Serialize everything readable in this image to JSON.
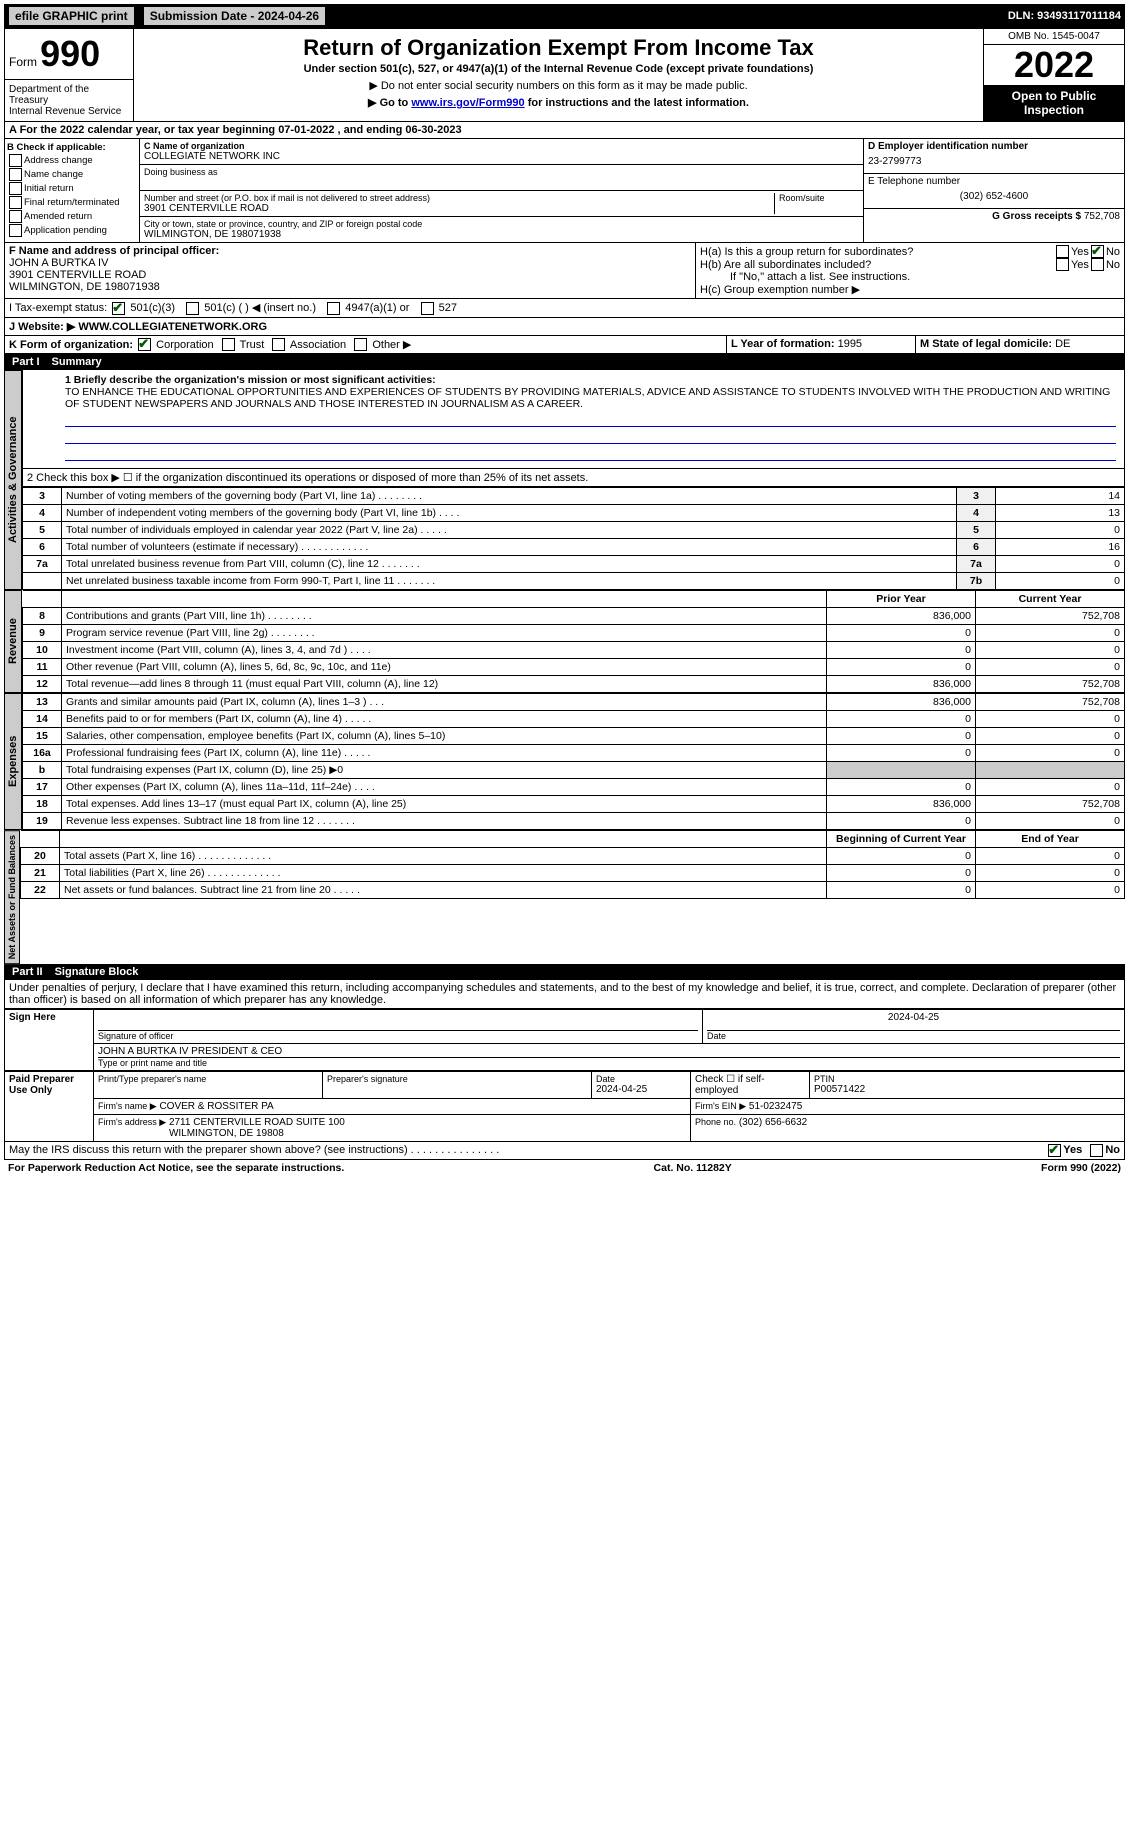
{
  "topbar": {
    "efile": "efile GRAPHIC print",
    "submission_label": "Submission Date - 2024-04-26",
    "dln": "DLN: 93493117011184"
  },
  "header": {
    "form_prefix": "Form",
    "form_number": "990",
    "title": "Return of Organization Exempt From Income Tax",
    "subtitle": "Under section 501(c), 527, or 4947(a)(1) of the Internal Revenue Code (except private foundations)",
    "note1": "▶ Do not enter social security numbers on this form as it may be made public.",
    "note2_pre": "▶ Go to ",
    "note2_link": "www.irs.gov/Form990",
    "note2_post": " for instructions and the latest information.",
    "dept": "Department of the Treasury\nInternal Revenue Service",
    "omb": "OMB No. 1545-0047",
    "year": "2022",
    "open_public": "Open to Public Inspection"
  },
  "rowA": "A For the 2022 calendar year, or tax year beginning 07-01-2022    , and ending 06-30-2023",
  "sectionB": {
    "check_label": "B Check if applicable:",
    "options": [
      "Address change",
      "Name change",
      "Initial return",
      "Final return/terminated",
      "Amended return",
      "Application pending"
    ],
    "c_label": "C Name of organization",
    "org_name": "COLLEGIATE NETWORK INC",
    "dba_label": "Doing business as",
    "addr_label": "Number and street (or P.O. box if mail is not delivered to street address)",
    "room": "Room/suite",
    "addr": "3901 CENTERVILLE ROAD",
    "city_label": "City or town, state or province, country, and ZIP or foreign postal code",
    "city": "WILMINGTON, DE  198071938",
    "d_label": "D Employer identification number",
    "ein": "23-2799773",
    "e_label": "E Telephone number",
    "phone": "(302) 652-4600",
    "g_label": "G Gross receipts $",
    "gross": "752,708"
  },
  "sectionF": {
    "f_label": "F  Name and address of principal officer:",
    "officer": "JOHN A BURTKA IV\n3901 CENTERVILLE ROAD\nWILMINGTON, DE  198071938",
    "ha": "H(a)  Is this a group return for subordinates?",
    "hb": "H(b)  Are all subordinates included?",
    "hb_note": "If \"No,\" attach a list. See instructions.",
    "hc": "H(c)  Group exemption number ▶",
    "yes": "Yes",
    "no": "No"
  },
  "sectionI": {
    "label": "I   Tax-exempt status:",
    "opts": [
      "501(c)(3)",
      "501(c) (  ) ◀ (insert no.)",
      "4947(a)(1) or",
      "527"
    ]
  },
  "sectionJ": {
    "label": "J   Website: ▶",
    "url": "WWW.COLLEGIATENETWORK.ORG"
  },
  "sectionK": {
    "label": "K Form of organization:",
    "opts": [
      "Corporation",
      "Trust",
      "Association",
      "Other ▶"
    ],
    "l_label": "L Year of formation:",
    "l_val": "1995",
    "m_label": "M State of legal domicile:",
    "m_val": "DE"
  },
  "part1": {
    "title": "Part I",
    "name": "Summary",
    "line1_label": "1  Briefly describe the organization's mission or most significant activities:",
    "mission": "TO ENHANCE THE EDUCATIONAL OPPORTUNITIES AND EXPERIENCES OF STUDENTS BY PROVIDING MATERIALS, ADVICE AND ASSISTANCE TO STUDENTS INVOLVED WITH THE PRODUCTION AND WRITING OF STUDENT NEWSPAPERS AND JOURNALS AND THOSE INTERESTED IN JOURNALISM AS A CAREER.",
    "line2": "2   Check this box ▶ ☐  if the organization discontinued its operations or disposed of more than 25% of its net assets.",
    "tabs": {
      "ag": "Activities & Governance",
      "rev": "Revenue",
      "exp": "Expenses",
      "net": "Net Assets or Fund Balances"
    },
    "col_prior": "Prior Year",
    "col_current": "Current Year",
    "col_begin": "Beginning of Current Year",
    "col_end": "End of Year",
    "lines_ag": [
      {
        "n": "3",
        "t": "Number of voting members of the governing body (Part VI, line 1a)   .    .    .    .    .    .    .    .",
        "b": "3",
        "v": "14"
      },
      {
        "n": "4",
        "t": "Number of independent voting members of the governing body (Part VI, line 1b)   .    .    .    .",
        "b": "4",
        "v": "13"
      },
      {
        "n": "5",
        "t": "Total number of individuals employed in calendar year 2022 (Part V, line 2a)   .    .    .    .    .",
        "b": "5",
        "v": "0"
      },
      {
        "n": "6",
        "t": "Total number of volunteers (estimate if necessary)   .    .    .    .    .    .    .    .    .    .    .    .",
        "b": "6",
        "v": "16"
      },
      {
        "n": "7a",
        "t": "Total unrelated business revenue from Part VIII, column (C), line 12   .    .    .    .    .    .    .",
        "b": "7a",
        "v": "0"
      },
      {
        "n": "",
        "t": "Net unrelated business taxable income from Form 990-T, Part I, line 11   .    .    .    .    .    .    .",
        "b": "7b",
        "v": "0"
      }
    ],
    "lines_rev": [
      {
        "n": "8",
        "t": "Contributions and grants (Part VIII, line 1h)   .    .    .    .    .    .    .    .",
        "p": "836,000",
        "c": "752,708"
      },
      {
        "n": "9",
        "t": "Program service revenue (Part VIII, line 2g)   .    .    .    .    .    .    .    .",
        "p": "0",
        "c": "0"
      },
      {
        "n": "10",
        "t": "Investment income (Part VIII, column (A), lines 3, 4, and 7d )   .    .    .    .",
        "p": "0",
        "c": "0"
      },
      {
        "n": "11",
        "t": "Other revenue (Part VIII, column (A), lines 5, 6d, 8c, 9c, 10c, and 11e)",
        "p": "0",
        "c": "0"
      },
      {
        "n": "12",
        "t": "Total revenue—add lines 8 through 11 (must equal Part VIII, column (A), line 12)",
        "p": "836,000",
        "c": "752,708"
      }
    ],
    "lines_exp": [
      {
        "n": "13",
        "t": "Grants and similar amounts paid (Part IX, column (A), lines 1–3 )   .    .    .",
        "p": "836,000",
        "c": "752,708"
      },
      {
        "n": "14",
        "t": "Benefits paid to or for members (Part IX, column (A), line 4)   .    .    .    .    .",
        "p": "0",
        "c": "0"
      },
      {
        "n": "15",
        "t": "Salaries, other compensation, employee benefits (Part IX, column (A), lines 5–10)",
        "p": "0",
        "c": "0"
      },
      {
        "n": "16a",
        "t": "Professional fundraising fees (Part IX, column (A), line 11e)   .    .    .    .    .",
        "p": "0",
        "c": "0"
      },
      {
        "n": "b",
        "t": "Total fundraising expenses (Part IX, column (D), line 25) ▶0",
        "p": "",
        "c": "",
        "grey": true
      },
      {
        "n": "17",
        "t": "Other expenses (Part IX, column (A), lines 11a–11d, 11f–24e)   .    .    .    .",
        "p": "0",
        "c": "0"
      },
      {
        "n": "18",
        "t": "Total expenses. Add lines 13–17 (must equal Part IX, column (A), line 25)",
        "p": "836,000",
        "c": "752,708"
      },
      {
        "n": "19",
        "t": "Revenue less expenses. Subtract line 18 from line 12   .    .    .    .    .    .    .",
        "p": "0",
        "c": "0"
      }
    ],
    "lines_net": [
      {
        "n": "20",
        "t": "Total assets (Part X, line 16)   .    .    .    .    .    .    .    .    .    .    .    .    .",
        "p": "0",
        "c": "0"
      },
      {
        "n": "21",
        "t": "Total liabilities (Part X, line 26)   .    .    .    .    .    .    .    .    .    .    .    .    .",
        "p": "0",
        "c": "0"
      },
      {
        "n": "22",
        "t": "Net assets or fund balances. Subtract line 21 from line 20   .    .    .    .    .",
        "p": "0",
        "c": "0"
      }
    ]
  },
  "part2": {
    "title": "Part II",
    "name": "Signature Block",
    "declaration": "Under penalties of perjury, I declare that I have examined this return, including accompanying schedules and statements, and to the best of my knowledge and belief, it is true, correct, and complete. Declaration of preparer (other than officer) is based on all information of which preparer has any knowledge.",
    "sign_here": "Sign Here",
    "sig_officer": "Signature of officer",
    "date": "Date",
    "date_val": "2024-04-25",
    "name_title": "JOHN A BURTKA IV  PRESIDENT & CEO",
    "type_name": "Type or print name and title",
    "paid": "Paid Preparer Use Only",
    "prep_name_label": "Print/Type preparer's name",
    "prep_sig_label": "Preparer's signature",
    "prep_date": "2024-04-25",
    "check_self": "Check ☐ if self-employed",
    "ptin_label": "PTIN",
    "ptin": "P00571422",
    "firm_name_label": "Firm's name    ▶",
    "firm_name": "COVER & ROSSITER PA",
    "firm_ein_label": "Firm's EIN ▶",
    "firm_ein": "51-0232475",
    "firm_addr_label": "Firm's address ▶",
    "firm_addr": "2711 CENTERVILLE ROAD SUITE 100\nWILMINGTON, DE  19808",
    "phone_label": "Phone no.",
    "phone": "(302) 656-6632",
    "may_irs": "May the IRS discuss this return with the preparer shown above? (see instructions)   .    .    .    .    .    .    .    .    .    .    .    .    .    .    .",
    "yes": "Yes",
    "no": "No"
  },
  "footer": {
    "pra": "For Paperwork Reduction Act Notice, see the separate instructions.",
    "cat": "Cat. No. 11282Y",
    "form": "Form 990 (2022)"
  }
}
